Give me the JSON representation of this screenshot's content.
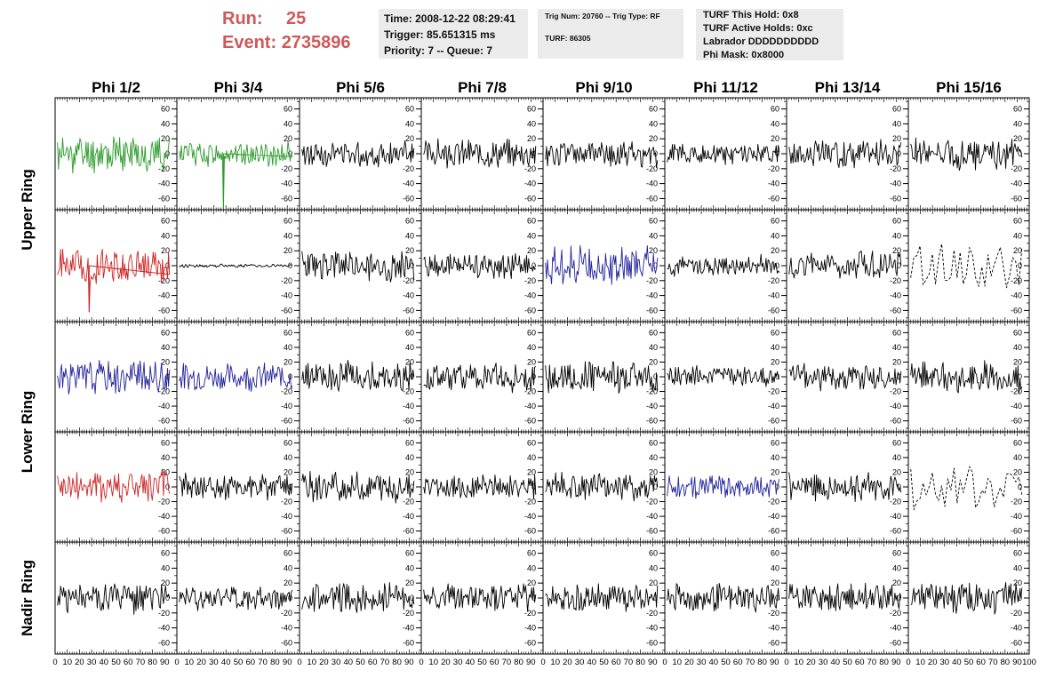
{
  "run": {
    "label": "Run:",
    "value": "25"
  },
  "event": {
    "label": "Event:",
    "value": "2735896"
  },
  "info_time": {
    "time": "Time: 2008-12-22 08:29:41",
    "trigger": "Trigger: 85.651315 ms",
    "priority": "Priority: 7 -- Queue: 7"
  },
  "info_trig": {
    "trig": "Trig Num: 20760 -- Trig Type: RF",
    "turf": "TURF: 86305"
  },
  "info_turf": {
    "hold": "TURF This Hold: 0x8",
    "active": "TURF Active Holds: 0xc",
    "labrador": "Labrador DDDDDDDDDD",
    "mask": "Phi Mask: 0x8000"
  },
  "chart_data": {
    "type": "line",
    "columns": [
      "Phi 1/2",
      "Phi 3/4",
      "Phi 5/6",
      "Phi 7/8",
      "Phi 9/10",
      "Phi 11/12",
      "Phi 13/14",
      "Phi 15/16"
    ],
    "ring_labels": [
      {
        "text": "Upper Ring",
        "rows": [
          0,
          1
        ]
      },
      {
        "text": "Lower Ring",
        "rows": [
          2,
          3
        ]
      },
      {
        "text": "Nadir Ring",
        "rows": [
          4,
          4
        ]
      }
    ],
    "xlim": [
      0,
      100
    ],
    "x_ticks": [
      "0",
      "10",
      "20",
      "30",
      "40",
      "50",
      "60",
      "70",
      "80",
      "90",
      "100"
    ],
    "ylim": [
      -75,
      75
    ],
    "y_ticks": [
      60,
      40,
      20,
      0,
      -20,
      -40,
      -60
    ],
    "colors": {
      "green": "#2a9a2a",
      "red": "#cc2222",
      "blue": "#22229a",
      "black": "#000000"
    },
    "traces": [
      [
        {
          "amp": 22,
          "color": "green",
          "seed": 11
        },
        {
          "amp": 14,
          "color": "green",
          "seed": 12,
          "spike": [
            38,
            -75
          ]
        },
        {
          "amp": 15,
          "color": "black",
          "seed": 13
        },
        {
          "amp": 16,
          "color": "black",
          "seed": 14
        },
        {
          "amp": 15,
          "color": "black",
          "seed": 15
        },
        {
          "amp": 12,
          "color": "black",
          "seed": 16
        },
        {
          "amp": 16,
          "color": "black",
          "seed": 17
        },
        {
          "amp": 18,
          "color": "black",
          "seed": 18
        }
      ],
      [
        {
          "amp": 20,
          "color": "red",
          "seed": 21,
          "spike": [
            28,
            -62
          ]
        },
        {
          "amp": 2,
          "color": "black",
          "seed": 22
        },
        {
          "amp": 18,
          "color": "black",
          "seed": 23
        },
        {
          "amp": 14,
          "color": "black",
          "seed": 24
        },
        {
          "amp": 22,
          "color": "blue",
          "seed": 25
        },
        {
          "amp": 12,
          "color": "black",
          "seed": 26
        },
        {
          "amp": 16,
          "color": "black",
          "seed": 27
        },
        {
          "amp": 28,
          "color": "black",
          "seed": 28,
          "dashed": true
        }
      ],
      [
        {
          "amp": 20,
          "color": "blue",
          "seed": 31
        },
        {
          "amp": 16,
          "color": "blue",
          "seed": 32
        },
        {
          "amp": 18,
          "color": "black",
          "seed": 33
        },
        {
          "amp": 18,
          "color": "black",
          "seed": 34
        },
        {
          "amp": 18,
          "color": "black",
          "seed": 35
        },
        {
          "amp": 12,
          "color": "black",
          "seed": 36
        },
        {
          "amp": 16,
          "color": "black",
          "seed": 37
        },
        {
          "amp": 18,
          "color": "black",
          "seed": 38
        }
      ],
      [
        {
          "amp": 20,
          "color": "red",
          "seed": 41
        },
        {
          "amp": 16,
          "color": "black",
          "seed": 42
        },
        {
          "amp": 18,
          "color": "black",
          "seed": 43
        },
        {
          "amp": 14,
          "color": "black",
          "seed": 44
        },
        {
          "amp": 16,
          "color": "black",
          "seed": 45
        },
        {
          "amp": 14,
          "color": "blue",
          "seed": 46
        },
        {
          "amp": 16,
          "color": "black",
          "seed": 47
        },
        {
          "amp": 30,
          "color": "black",
          "seed": 48,
          "dashed": true
        }
      ],
      [
        {
          "amp": 18,
          "color": "black",
          "seed": 51
        },
        {
          "amp": 14,
          "color": "black",
          "seed": 52
        },
        {
          "amp": 18,
          "color": "black",
          "seed": 53
        },
        {
          "amp": 16,
          "color": "black",
          "seed": 54
        },
        {
          "amp": 16,
          "color": "black",
          "seed": 55
        },
        {
          "amp": 16,
          "color": "black",
          "seed": 56
        },
        {
          "amp": 16,
          "color": "black",
          "seed": 57
        },
        {
          "amp": 18,
          "color": "black",
          "seed": 58
        }
      ]
    ]
  }
}
